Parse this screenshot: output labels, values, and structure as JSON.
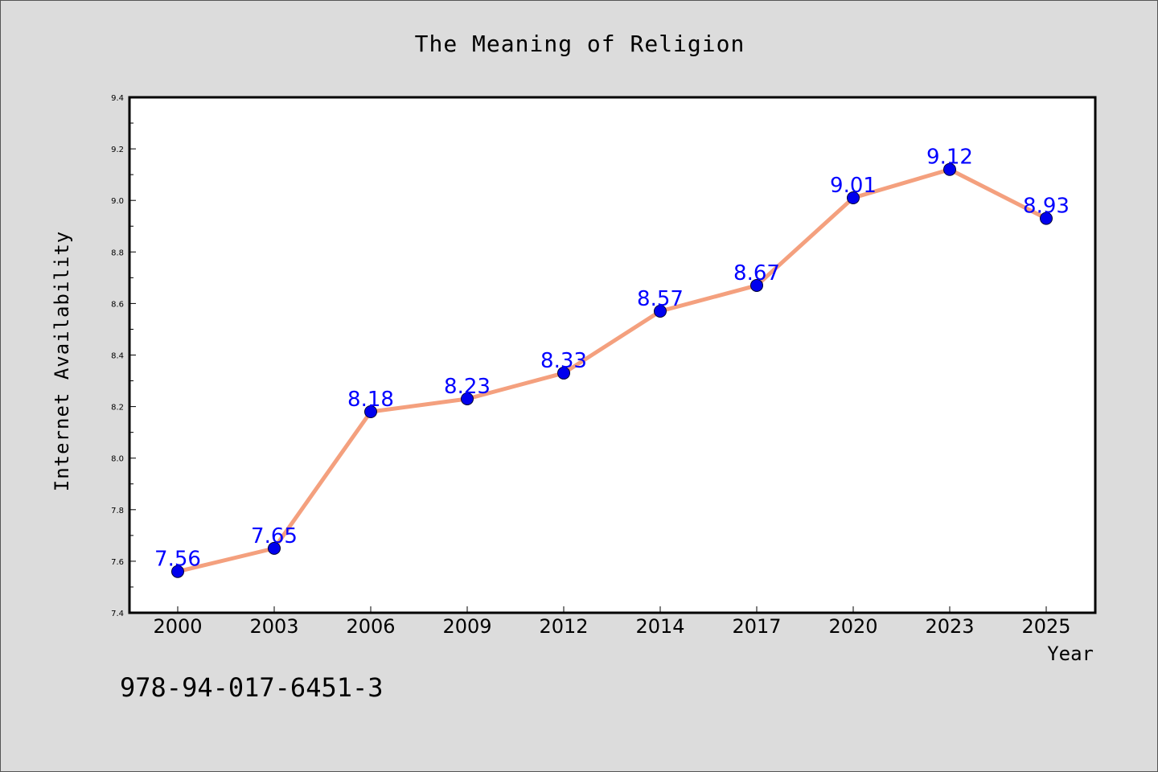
{
  "chart_data": {
    "type": "line",
    "title": "The Meaning of Religion",
    "xlabel": "Year",
    "ylabel": "Internet Availability",
    "categories": [
      "2000",
      "2003",
      "2006",
      "2009",
      "2012",
      "2014",
      "2017",
      "2020",
      "2023",
      "2025"
    ],
    "series": [
      {
        "values": [
          7.56,
          7.65,
          8.18,
          8.23,
          8.33,
          8.57,
          8.67,
          9.01,
          9.12,
          8.93
        ],
        "line_color": "#f4a07e",
        "marker_color": "#0000ee",
        "label_color": "#0000ff"
      }
    ],
    "ylim": [
      7.4,
      9.4
    ],
    "yticks": [
      "7.4",
      "7.6",
      "7.8",
      "8.0",
      "8.2",
      "8.4",
      "8.6",
      "8.8",
      "9.0",
      "9.2",
      "9.4"
    ],
    "grid": false,
    "data_labels": true
  },
  "footer_text": "978-94-017-6451-3",
  "colors": {
    "background": "#dcdcdc",
    "plot_area": "#ffffff"
  }
}
